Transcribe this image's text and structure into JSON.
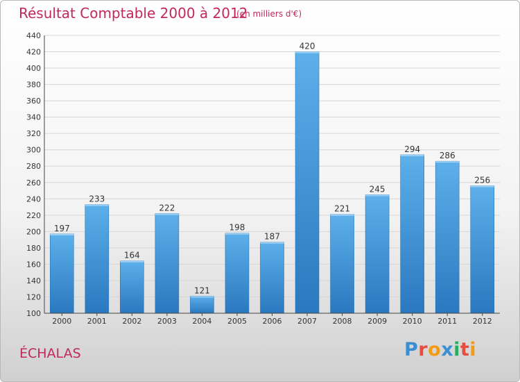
{
  "chart_data": {
    "type": "bar",
    "title": "Résultat Comptable 2000 à 2012",
    "subtitle": "(en milliers d'€)",
    "categories": [
      "2000",
      "2001",
      "2002",
      "2003",
      "2004",
      "2005",
      "2006",
      "2007",
      "2008",
      "2009",
      "2010",
      "2011",
      "2012"
    ],
    "values": [
      197,
      233,
      164,
      222,
      121,
      198,
      187,
      420,
      221,
      245,
      294,
      286,
      256
    ],
    "value_labels": [
      "197",
      "233",
      "164",
      "222",
      "121",
      "198",
      "187",
      "420",
      "221",
      "245",
      "294",
      "286",
      "256"
    ],
    "yticks": [
      "100",
      "120",
      "140",
      "160",
      "180",
      "200",
      "220",
      "240",
      "260",
      "280",
      "300",
      "320",
      "340",
      "360",
      "380",
      "400",
      "420",
      "440"
    ],
    "ylim": [
      100,
      440
    ],
    "ystep": 20,
    "xlabel": "",
    "ylabel": "",
    "grid": true,
    "bar_color": "#3a8fd3"
  },
  "location": "ÉCHALAS",
  "logo": {
    "text": "Proxiti",
    "letters": [
      "P",
      "r",
      "o",
      "x",
      "i",
      "t",
      "i"
    ],
    "colors": [
      "#3a8fd3",
      "#e74c3c",
      "#f39c12",
      "#3a8fd3",
      "#27ae60",
      "#e74c3c",
      "#f39c12"
    ]
  }
}
